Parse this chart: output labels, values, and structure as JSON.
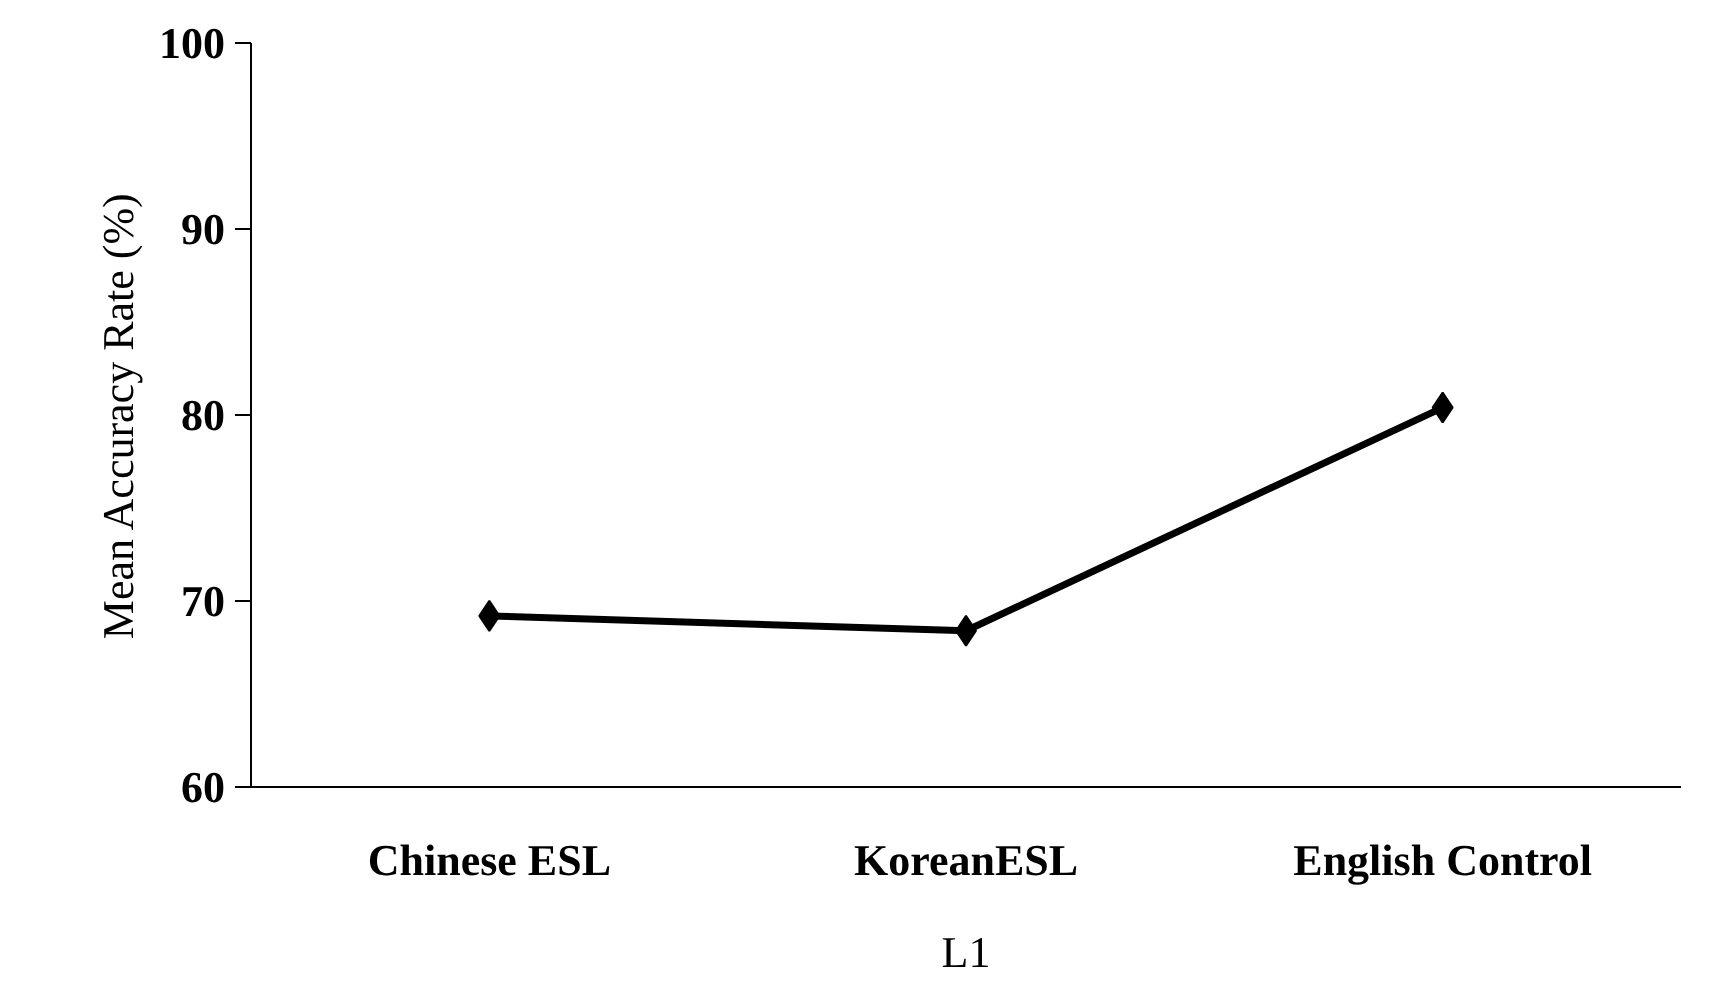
{
  "chart_data": {
    "type": "line",
    "xlabel": "L1",
    "ylabel": "Mean Accuracy Rate (%)",
    "categories": [
      "Chinese ESL",
      "KoreanESL",
      "English Control"
    ],
    "series": [
      {
        "color": "#000000",
        "values": [
          69.2,
          68.4,
          80.4
        ]
      }
    ],
    "ylim": [
      60,
      100
    ],
    "yticks": [
      60,
      70,
      80,
      90,
      100
    ],
    "grid": false,
    "marker": "diamond",
    "line_style": "solid"
  }
}
